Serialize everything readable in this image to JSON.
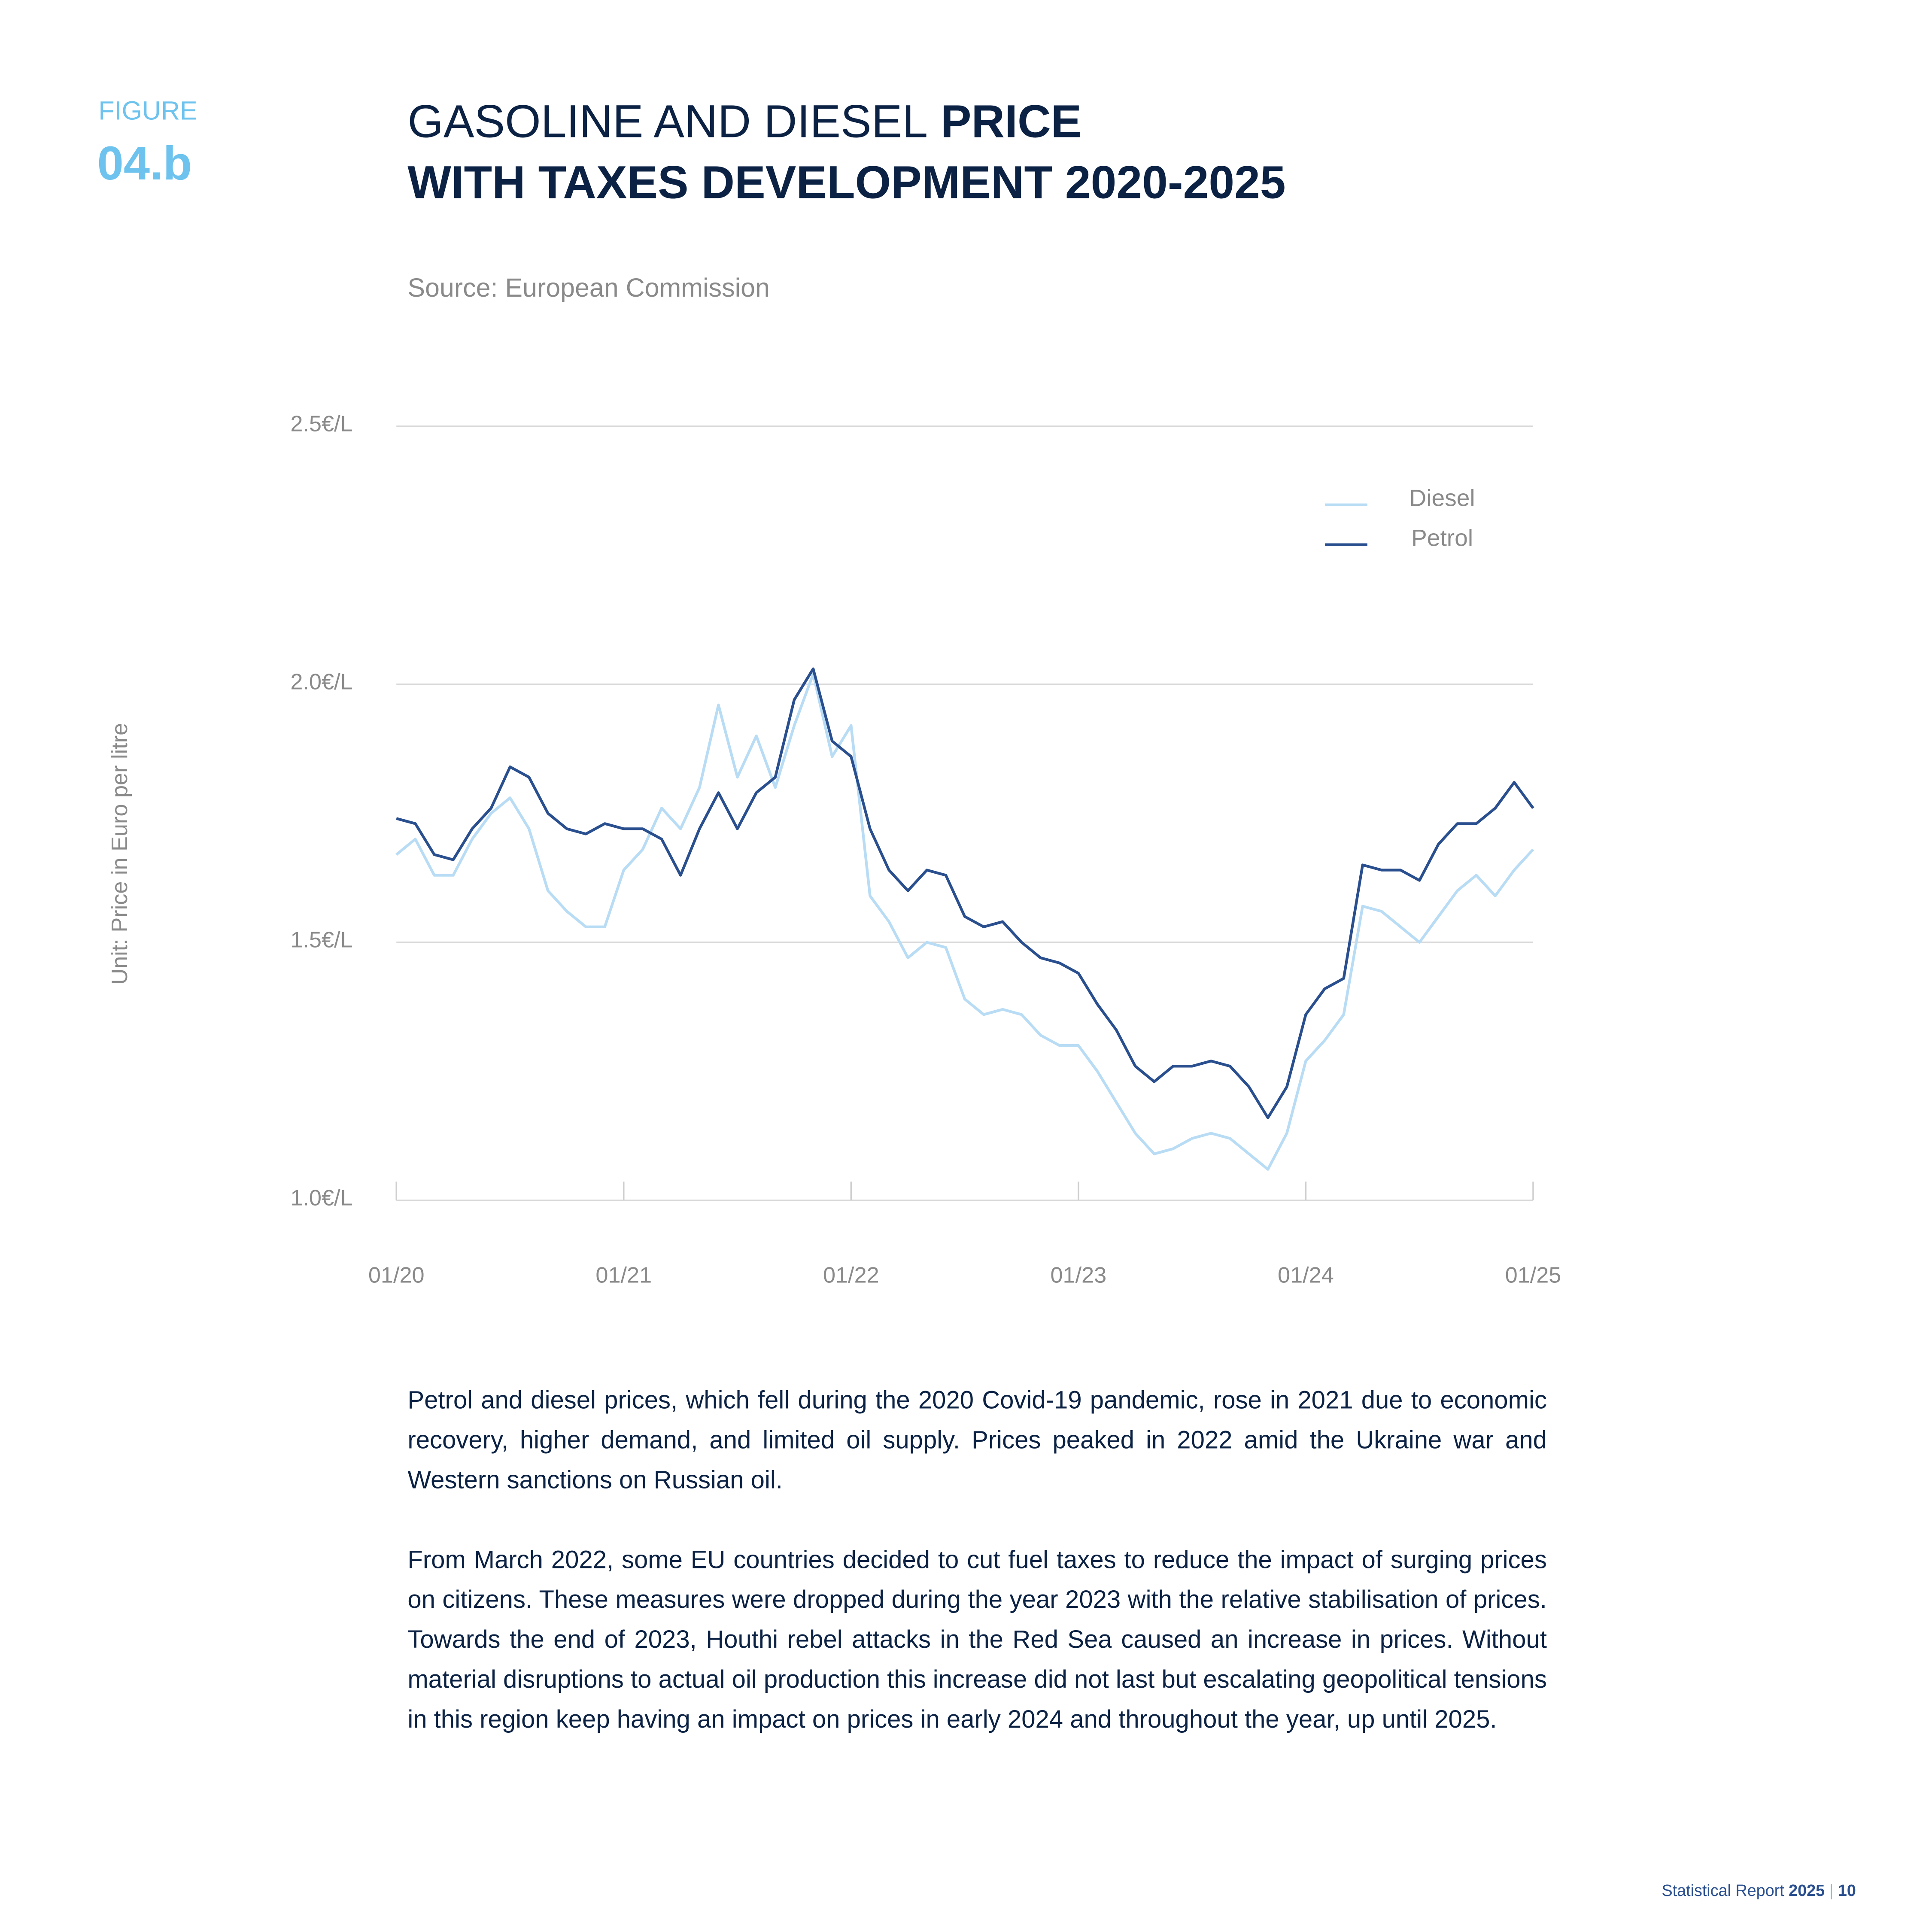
{
  "header": {
    "figure_label": "FIGURE",
    "figure_number": "04.b",
    "title_light": "GASOLINE AND DIESEL",
    "title_bold_1": "PRICE",
    "title_bold_2": "WITH TAXES DEVELOPMENT 2020-2025",
    "source": "Source: European Commission"
  },
  "chart_data": {
    "type": "line",
    "y_label": "Unit: Price in Euro per litre",
    "x": [
      0,
      1,
      2,
      3,
      4,
      5,
      6,
      7,
      8,
      9,
      10,
      11,
      12,
      13,
      14,
      15,
      16,
      17,
      18,
      19,
      20,
      21,
      22,
      23,
      24,
      25,
      26,
      27,
      28,
      29,
      30,
      31,
      32,
      33,
      34,
      35,
      36,
      37,
      38,
      39,
      40,
      41,
      42,
      43,
      44,
      45,
      46,
      47,
      48,
      49,
      50,
      51,
      52,
      53,
      54,
      55,
      56,
      57,
      58,
      59,
      60
    ],
    "xlim": [
      0,
      60
    ],
    "xticks": [
      {
        "value": 0,
        "label": "01/20"
      },
      {
        "value": 12,
        "label": "01/21"
      },
      {
        "value": 24,
        "label": "01/22"
      },
      {
        "value": 36,
        "label": "01/23"
      },
      {
        "value": 48,
        "label": "01/24"
      },
      {
        "value": 60,
        "label": "01/25"
      }
    ],
    "ylim": [
      1.0,
      2.5
    ],
    "yticks": [
      {
        "value": 1.0,
        "label": "1.0€/L"
      },
      {
        "value": 1.5,
        "label": "1.5€/L"
      },
      {
        "value": 2.0,
        "label": "2.0€/L"
      },
      {
        "value": 2.5,
        "label": "2.5€/L"
      }
    ],
    "grid": true,
    "legend": "top-right",
    "series": [
      {
        "name": "Diesel",
        "color": "#b9dcf5",
        "values": [
          1.67,
          1.7,
          1.63,
          1.63,
          1.7,
          1.75,
          1.78,
          1.72,
          1.6,
          1.56,
          1.53,
          1.53,
          1.64,
          1.68,
          1.76,
          1.72,
          1.8,
          1.96,
          1.82,
          1.9,
          1.8,
          1.92,
          2.02,
          1.86,
          1.92,
          1.59,
          1.54,
          1.47,
          1.5,
          1.49,
          1.39,
          1.36,
          1.37,
          1.36,
          1.32,
          1.3,
          1.3,
          1.25,
          1.19,
          1.13,
          1.09,
          1.1,
          1.12,
          1.13,
          1.12,
          1.09,
          1.06,
          1.13,
          1.27,
          1.31,
          1.36,
          1.57,
          1.56,
          1.53,
          1.5,
          1.55,
          1.6,
          1.63,
          1.59,
          1.64,
          1.68
        ]
      },
      {
        "name": "Petrol",
        "color": "#2a4f8f",
        "values": [
          1.74,
          1.73,
          1.67,
          1.66,
          1.72,
          1.76,
          1.84,
          1.82,
          1.75,
          1.72,
          1.71,
          1.73,
          1.72,
          1.72,
          1.7,
          1.63,
          1.72,
          1.79,
          1.72,
          1.79,
          1.82,
          1.97,
          2.03,
          1.89,
          1.86,
          1.72,
          1.64,
          1.6,
          1.64,
          1.63,
          1.55,
          1.53,
          1.54,
          1.5,
          1.47,
          1.46,
          1.44,
          1.38,
          1.33,
          1.26,
          1.23,
          1.26,
          1.26,
          1.27,
          1.26,
          1.22,
          1.16,
          1.22,
          1.36,
          1.41,
          1.43,
          1.65,
          1.64,
          1.64,
          1.62,
          1.69,
          1.73,
          1.73,
          1.76,
          1.81,
          1.76
        ]
      }
    ]
  },
  "body": {
    "paragraphs": [
      "Petrol and diesel prices, which fell during the 2020 Covid-19 pandemic, rose in 2021 due to economic recovery, higher demand, and limited oil supply. Prices peaked in 2022 amid the Ukraine war and Western sanctions on Russian oil.",
      "From March 2022, some EU countries decided to cut fuel taxes to reduce the impact of surging prices on citizens. These measures were dropped during the year 2023 with the relative stabilisation of prices. Towards the end of 2023, Houthi rebel attacks in the Red Sea caused an increase in prices. Without material disruptions to actual oil production this increase did not last but escalating geopolitical tensions in this region keep having an impact on prices in early 2024 and throughout the year, up until 2025."
    ]
  },
  "footer": {
    "report": "Statistical Report",
    "year": "2025",
    "separator": "|",
    "page": "10"
  }
}
